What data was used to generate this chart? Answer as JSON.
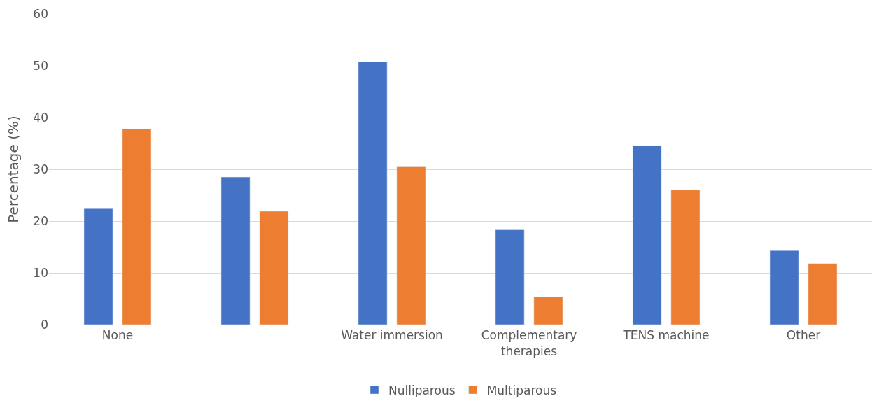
{
  "chart_data": {
    "type": "bar",
    "ylabel": "Percentage (%)",
    "categories": [
      "None",
      null,
      "Water immersion",
      "Complementary therapies",
      "TENS machine",
      "Other"
    ],
    "series": [
      {
        "name": "Nulliparous",
        "color": "#4472c4",
        "values": [
          22.4,
          28.5,
          50.8,
          18.3,
          34.6,
          14.3
        ]
      },
      {
        "name": "Multiparous",
        "color": "#ed7d31",
        "values": [
          37.8,
          21.9,
          30.6,
          5.4,
          26.0,
          11.8
        ]
      }
    ],
    "ylim": [
      0,
      60
    ],
    "yticks": [
      0,
      10,
      20,
      30,
      40,
      50,
      60
    ],
    "grid": "y",
    "legend": "bottom"
  }
}
